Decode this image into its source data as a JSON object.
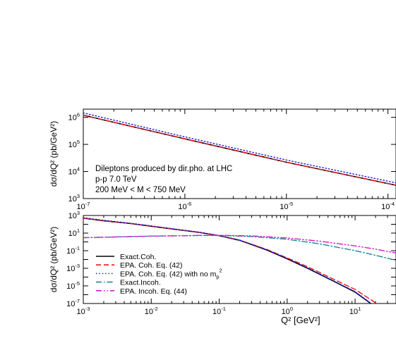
{
  "chart_data": [
    {
      "id": "top",
      "type": "line",
      "xscale": "log",
      "yscale": "log",
      "xlim": [
        1e-07,
        0.00012
      ],
      "ylim": [
        1000,
        2000000
      ],
      "ylabel": "dσ/dQ² (pb/GeV²)",
      "xlabel": "",
      "annotations": [
        "Dileptons produced by dir.pho. at LHC",
        "p-p 7.0 TeV",
        "200 MeV < M < 750 MeV"
      ],
      "x_tick_labels": [
        {
          "base": "10",
          "exp": "-7",
          "value": 1e-07
        },
        {
          "base": "10",
          "exp": "-6",
          "value": 1e-06
        },
        {
          "base": "10",
          "exp": "-5",
          "value": 1e-05
        },
        {
          "base": "10",
          "exp": "-4",
          "value": 0.0001
        }
      ],
      "y_tick_labels": [
        {
          "base": "10",
          "exp": "3",
          "value": 1000.0
        },
        {
          "base": "10",
          "exp": "4",
          "value": 10000.0
        },
        {
          "base": "10",
          "exp": "5",
          "value": 100000.0
        },
        {
          "base": "10",
          "exp": "6",
          "value": 1000000.0
        }
      ],
      "series": [
        {
          "key": "exact_coh",
          "style": "solid",
          "color": "#000000",
          "x": [
            1e-07,
            1e-06,
            1e-05,
            0.00012
          ],
          "y": [
            1200000,
            160000,
            22000,
            3100
          ]
        },
        {
          "key": "epa_coh",
          "style": "dashed",
          "color": "#e8141c",
          "x": [
            1e-07,
            1e-06,
            1e-05,
            0.00012
          ],
          "y": [
            1200000,
            160000,
            22000,
            3100
          ]
        },
        {
          "key": "epa_coh_no_mp",
          "style": "dotted",
          "color": "#1a1ad6",
          "x": [
            1e-07,
            1e-06,
            1e-05,
            0.00012
          ],
          "y": [
            1450000,
            190000,
            26500,
            3800
          ]
        }
      ]
    },
    {
      "id": "bottom",
      "type": "line",
      "xscale": "log",
      "yscale": "log",
      "xlim": [
        0.001,
        40
      ],
      "ylim": [
        1e-07,
        1000
      ],
      "ylabel": "dσ/dQ² (pb/GeV²)",
      "xlabel": "Q² [GeV²]",
      "x_tick_labels": [
        {
          "base": "10",
          "exp": "-3",
          "value": 0.001
        },
        {
          "base": "10",
          "exp": "-2",
          "value": 0.01
        },
        {
          "base": "10",
          "exp": "-1",
          "value": 0.1
        },
        {
          "base": "10",
          "exp": "0",
          "value": 1
        },
        {
          "base": "10",
          "exp": "1",
          "value": 10
        }
      ],
      "y_tick_labels": [
        {
          "base": "10",
          "exp": "-7",
          "value": 1e-07
        },
        {
          "base": "10",
          "exp": "-5",
          "value": 1e-05
        },
        {
          "base": "10",
          "exp": "-3",
          "value": 0.001
        },
        {
          "base": "10",
          "exp": "-1",
          "value": 0.1
        },
        {
          "base": "10",
          "exp": "1",
          "value": 10
        },
        {
          "base": "10",
          "exp": "3",
          "value": 1000
        }
      ],
      "legend": {
        "placement": "bottom-left",
        "entries": [
          {
            "series": "exact_coh",
            "label": "Exact.Coh."
          },
          {
            "series": "epa_coh",
            "label": "EPA. Coh. Eq. (42)"
          },
          {
            "series": "epa_coh_no_mp",
            "label": "EPA. Coh. Eq. (42) with no m",
            "sub": "p",
            "sup": "2"
          },
          {
            "series": "exact_incoh",
            "label": "Exact.Incoh."
          },
          {
            "series": "epa_incoh",
            "label": "EPA. Incoh. Eq. (44)"
          }
        ]
      },
      "series": [
        {
          "key": "exact_coh",
          "style": "solid",
          "color": "#000000",
          "x": [
            0.001,
            0.002,
            0.005,
            0.01,
            0.02,
            0.05,
            0.1,
            0.2,
            0.5,
            1,
            2,
            5,
            10,
            17
          ],
          "y": [
            500,
            250,
            120,
            60,
            30,
            12,
            5,
            1.5,
            0.12,
            0.012,
            0.001,
            3e-05,
            2e-06,
            1e-07
          ]
        },
        {
          "key": "epa_coh",
          "style": "dashed",
          "color": "#e8141c",
          "x": [
            0.001,
            0.002,
            0.005,
            0.01,
            0.02,
            0.05,
            0.1,
            0.2,
            0.5,
            1,
            2,
            5,
            10,
            20
          ],
          "y": [
            500,
            250,
            120,
            60,
            30,
            12,
            5,
            1.6,
            0.14,
            0.015,
            0.0015,
            5e-05,
            4e-06,
            1.2e-07
          ]
        },
        {
          "key": "epa_coh_no_mp",
          "style": "dotted",
          "color": "#1a1ad6",
          "x": [
            0.001,
            0.002,
            0.005,
            0.01,
            0.02,
            0.05,
            0.1,
            0.2,
            0.5,
            1,
            2,
            5,
            10,
            17
          ],
          "y": [
            560,
            280,
            130,
            65,
            32,
            13,
            5.3,
            1.6,
            0.13,
            0.013,
            0.0011,
            3.3e-05,
            2.2e-06,
            1.1e-07
          ]
        },
        {
          "key": "exact_incoh",
          "style": "dashdot",
          "color": "#1a8c8c",
          "x": [
            0.001,
            0.01,
            0.05,
            0.1,
            0.3,
            1,
            3,
            10,
            20,
            40
          ],
          "y": [
            3,
            4.5,
            5.3,
            5.5,
            4,
            2,
            0.6,
            0.1,
            0.03,
            0.008
          ]
        },
        {
          "key": "epa_incoh",
          "style": "dashdotdot",
          "color": "#d21ed2",
          "x": [
            0.001,
            0.01,
            0.05,
            0.1,
            0.3,
            1,
            3,
            10,
            20,
            40
          ],
          "y": [
            3,
            4.5,
            5.4,
            5.6,
            4.8,
            2.8,
            1.2,
            0.35,
            0.15,
            0.055
          ]
        }
      ]
    }
  ]
}
